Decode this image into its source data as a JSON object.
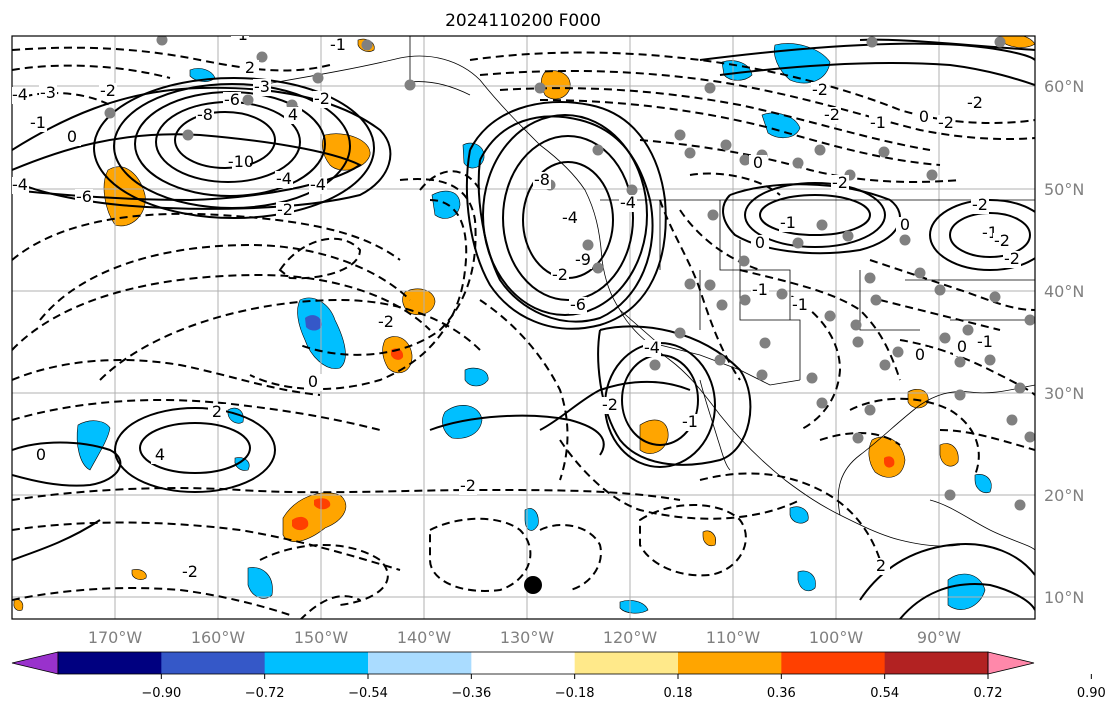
{
  "map": {
    "title": "2024110200 F000",
    "lon_ticks": [
      "170°W",
      "160°W",
      "150°W",
      "140°W",
      "130°W",
      "120°W",
      "110°W",
      "100°W",
      "90°W"
    ],
    "lat_ticks": [
      "60°N",
      "50°N",
      "40°N",
      "30°N",
      "20°N",
      "10°N"
    ],
    "grid": true,
    "contour_labels": [
      "-4",
      "-3",
      "-2",
      "-1",
      "0",
      "-2",
      "-4",
      "-6",
      "-8",
      "-10",
      "-4",
      "-3",
      "-4",
      "-6",
      "2",
      "-1",
      "-1",
      "-2",
      "4",
      "-4",
      "-8",
      "-9",
      "-2",
      "-4",
      "-6",
      "-4",
      "-2",
      "-1",
      "-2",
      "-2",
      "-1",
      "0",
      "-2",
      "-2",
      "-2",
      "0",
      "0",
      "-1",
      "-1",
      "-1",
      "0",
      "-1",
      "-2",
      "-2",
      "-2",
      "0",
      "0",
      "-1",
      "2",
      "4",
      "0",
      "0",
      "-2",
      "-2",
      "-2",
      "2"
    ],
    "colors": {
      "contour": "#000000",
      "dot_gray": "#808080",
      "marker_black": "#000000",
      "grid": "#b0b0b0",
      "tick_label": "#808080"
    }
  },
  "colorbar": {
    "tick_labels": [
      "−0.90",
      "−0.72",
      "−0.54",
      "−0.36",
      "−0.18",
      "0.18",
      "0.36",
      "0.54",
      "0.72",
      "0.90"
    ],
    "colors": [
      "#9932cc",
      "#000080",
      "#3558c8",
      "#00bfff",
      "#aadcff",
      "#ffffff",
      "#ffe98a",
      "#ffa500",
      "#ff4000",
      "#b22222",
      "#ff88aa"
    ],
    "extend": "both"
  }
}
